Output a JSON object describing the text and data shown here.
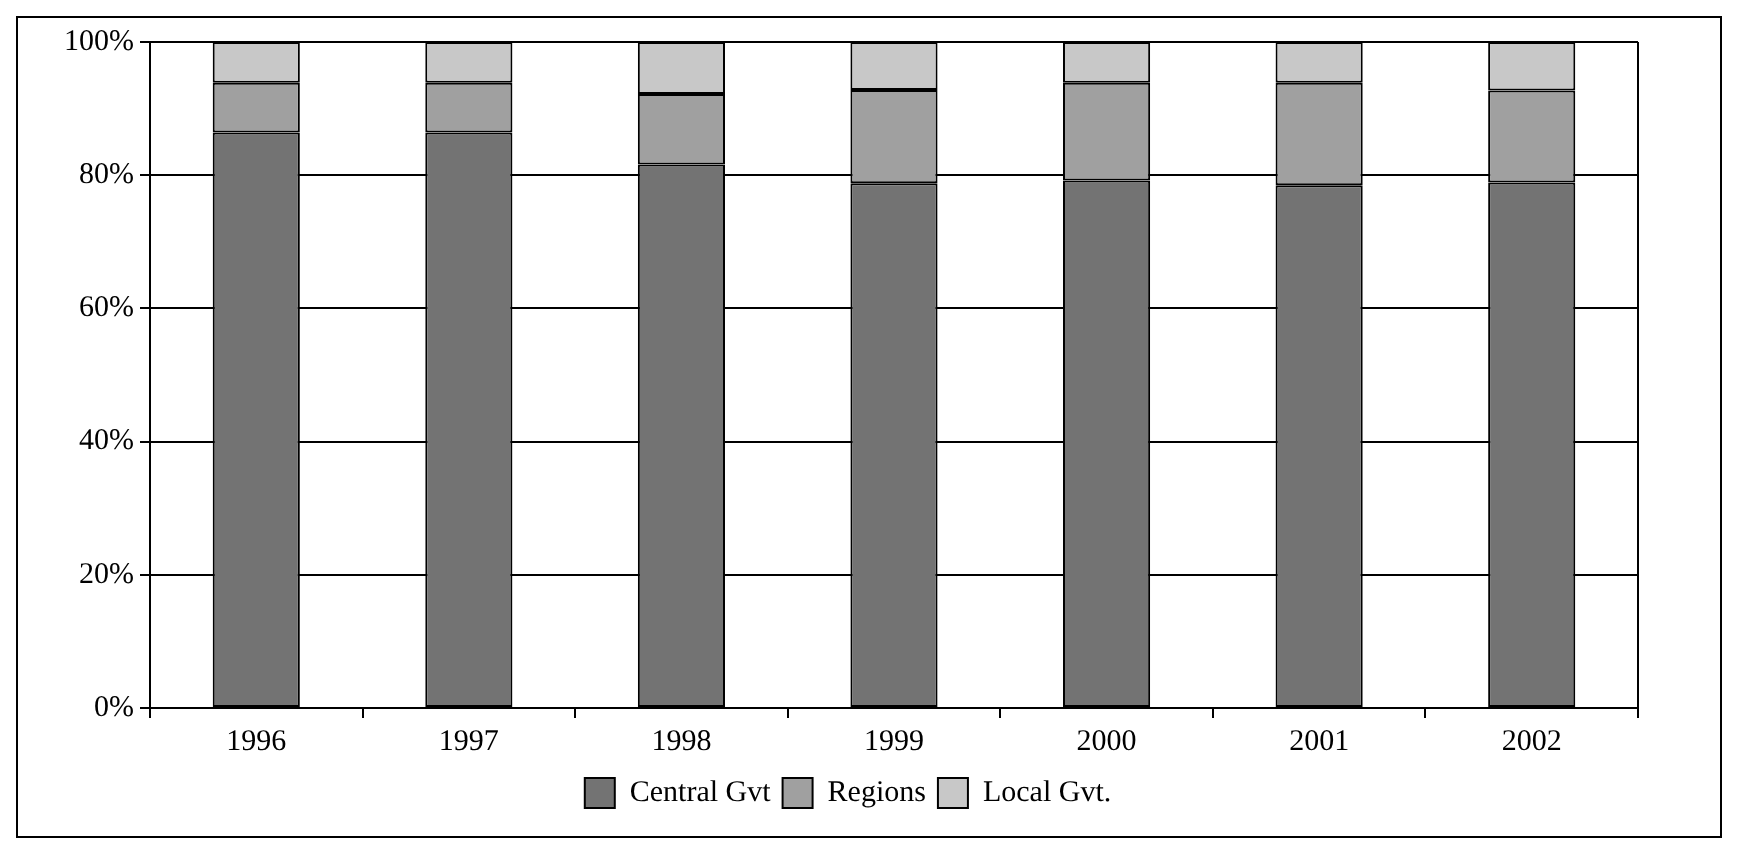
{
  "chart_data": {
    "type": "bar",
    "stacked": true,
    "categories": [
      "1996",
      "1997",
      "1998",
      "1999",
      "2000",
      "2001",
      "2002"
    ],
    "series": [
      {
        "name": "Central Gvt",
        "color": "#737373",
        "values": [
          86.4,
          86.4,
          81.6,
          78.8,
          79.2,
          78.5,
          78.9
        ]
      },
      {
        "name": "Regions",
        "color": "#a0a0a0",
        "values": [
          7.5,
          7.5,
          10.6,
          14.0,
          14.7,
          15.4,
          13.8
        ]
      },
      {
        "name": "Local Gvt.",
        "color": "#c8c8c8",
        "values": [
          6.1,
          6.1,
          7.8,
          7.2,
          6.1,
          6.1,
          7.3
        ]
      }
    ],
    "ylim": [
      0,
      100
    ],
    "yticks": [
      {
        "value": 0,
        "label": "0%"
      },
      {
        "value": 20,
        "label": "20%"
      },
      {
        "value": 40,
        "label": "40%"
      },
      {
        "value": 60,
        "label": "60%"
      },
      {
        "value": 80,
        "label": "80%"
      },
      {
        "value": 100,
        "label": "100%"
      }
    ],
    "grid": "y",
    "legend": "bottom"
  }
}
